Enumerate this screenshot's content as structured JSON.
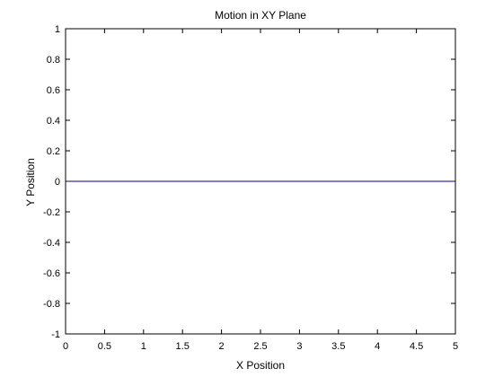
{
  "chart_data": {
    "type": "line",
    "title": "Motion in XY Plane",
    "xlabel": "X Position",
    "ylabel": "Y Position",
    "xlim": [
      0,
      5
    ],
    "ylim": [
      -1,
      1
    ],
    "xticks": [
      0,
      0.5,
      1,
      1.5,
      2,
      2.5,
      3,
      3.5,
      4,
      4.5,
      5
    ],
    "xtick_labels": [
      "0",
      "0.5",
      "1",
      "1.5",
      "2",
      "2.5",
      "3",
      "3.5",
      "4",
      "4.5",
      "5"
    ],
    "yticks": [
      -1,
      -0.8,
      -0.6,
      -0.4,
      -0.2,
      0,
      0.2,
      0.4,
      0.6,
      0.8,
      1
    ],
    "ytick_labels": [
      "-1",
      "-0.8",
      "-0.6",
      "-0.4",
      "-0.2",
      "0",
      "0.2",
      "0.4",
      "0.6",
      "0.8",
      "1"
    ],
    "grid": false,
    "series": [
      {
        "x": [
          0,
          5
        ],
        "y": [
          0,
          0
        ],
        "color": "#00008b"
      }
    ]
  }
}
